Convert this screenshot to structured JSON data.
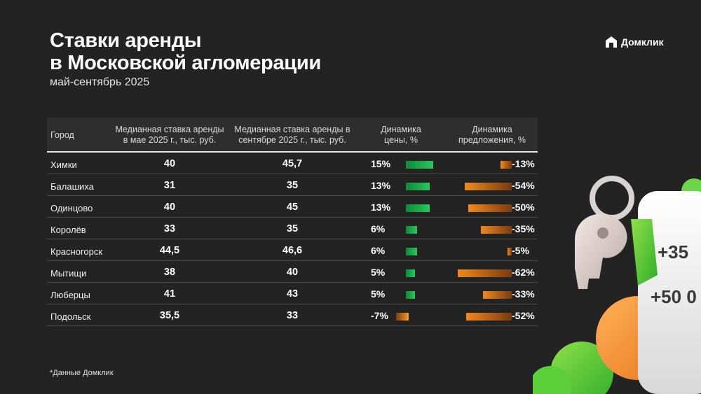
{
  "title_line1": "Ставки аренды",
  "title_line2": "в Московской агломерации",
  "subtitle": "май-сентябрь 2025",
  "logo": {
    "text": "Домклик",
    "icon": "domclick-house-icon"
  },
  "table": {
    "headers": {
      "city": "Город",
      "may": "Медианная ставка аренды в мае 2025 г., тыс. руб.",
      "sep": "Медианная ставка аренды в сентябре 2025 г., тыс. руб.",
      "price": "Динамика цены, %",
      "supply": "Динамика предложения, %"
    },
    "rows": [
      {
        "city": "Химки",
        "may": "40",
        "sep": "45,7",
        "price": "15%",
        "price_value": 15,
        "supply": "-13%",
        "supply_value": -13
      },
      {
        "city": "Балашиха",
        "may": "31",
        "sep": "35",
        "price": "13%",
        "price_value": 13,
        "supply": "-54%",
        "supply_value": -54
      },
      {
        "city": "Одинцово",
        "may": "40",
        "sep": "45",
        "price": "13%",
        "price_value": 13,
        "supply": "-50%",
        "supply_value": -50
      },
      {
        "city": "Королёв",
        "may": "33",
        "sep": "35",
        "price": "6%",
        "price_value": 6,
        "supply": "-35%",
        "supply_value": -35
      },
      {
        "city": "Красногорск",
        "may": "44,5",
        "sep": "46,6",
        "price": "6%",
        "price_value": 6,
        "supply": "-5%",
        "supply_value": -5
      },
      {
        "city": "Мытищи",
        "may": "38",
        "sep": "40",
        "price": "5%",
        "price_value": 5,
        "supply": "-62%",
        "supply_value": -62
      },
      {
        "city": "Люберцы",
        "may": "41",
        "sep": "43",
        "price": "5%",
        "price_value": 5,
        "supply": "-33%",
        "supply_value": -33
      },
      {
        "city": "Подольск",
        "may": "35,5",
        "sep": "33",
        "price": "-7%",
        "price_value": -7,
        "supply": "-52%",
        "supply_value": -52
      }
    ]
  },
  "decor": {
    "tag1": "+35",
    "tag2": "+50 0"
  },
  "footnote": "*Данные Домклик",
  "colors": {
    "background": "#232323",
    "green": "#28c75a",
    "orange": "#f08a1e"
  }
}
